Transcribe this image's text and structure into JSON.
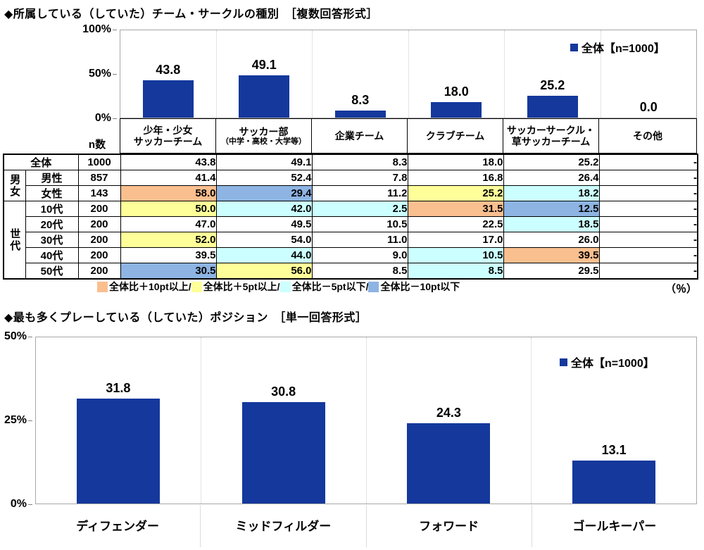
{
  "colors": {
    "bar": "#14389C",
    "plus10": "#FABF8F",
    "plus5": "#FFFF99",
    "minus5": "#CCFFFF",
    "minus10": "#8DB4E2"
  },
  "section1": {
    "title": "◆所属している（していた）チーム・サークルの種別　［複数回答形式］",
    "legend": "全体【n=1000】"
  },
  "section2": {
    "title": "◆最も多くプレーしている（していた）ポジション　［単一回答形式］",
    "legend": "全体【n=1000】"
  },
  "chart_data": [
    {
      "type": "bar",
      "title": "所属している（していた）チーム・サークルの種別",
      "categories": [
        "少年・少女サッカーチーム",
        "サッカー部（中学・高校・大学等）",
        "企業チーム",
        "クラブチーム",
        "サッカーサークル・草サッカーチーム",
        "その他"
      ],
      "values": [
        43.8,
        49.1,
        8.3,
        18.0,
        25.2,
        0.0
      ],
      "legend": "全体【n=1000】",
      "yticks": [
        "100%",
        "50%",
        "0%"
      ],
      "ylim": [
        0,
        100
      ],
      "grid": false,
      "legend_position": "top-right"
    },
    {
      "type": "bar",
      "title": "最も多くプレーしている（していた）ポジション",
      "categories": [
        "ディフェンダー",
        "ミッドフィルダー",
        "フォワード",
        "ゴールキーパー"
      ],
      "values": [
        31.8,
        30.8,
        24.3,
        13.1
      ],
      "legend": "全体【n=1000】",
      "yticks": [
        "50%",
        "25%",
        "0%"
      ],
      "ylim": [
        0,
        50
      ],
      "grid": false,
      "legend_position": "top-right"
    }
  ],
  "table": {
    "n_header": "n数",
    "col_headers": [
      [
        "少年・少女",
        "サッカーチーム"
      ],
      [
        "サッカー部",
        "（中学・高校・大学等）"
      ],
      [
        "企業チーム"
      ],
      [
        "クラブチーム"
      ],
      [
        "サッカーサークル・",
        "草サッカーチーム"
      ],
      [
        "その他"
      ]
    ],
    "row_groups": [
      {
        "label": "",
        "span": 1
      },
      {
        "label": "男女",
        "span": 2
      },
      {
        "label": "世代",
        "span": 5
      }
    ],
    "rows": [
      {
        "label": "全体",
        "n": "1000",
        "cells": [
          {
            "v": "43.8"
          },
          {
            "v": "49.1"
          },
          {
            "v": "8.3"
          },
          {
            "v": "18.0"
          },
          {
            "v": "25.2"
          },
          {
            "v": "-"
          }
        ]
      },
      {
        "label": "男性",
        "n": "857",
        "cells": [
          {
            "v": "41.4"
          },
          {
            "v": "52.4"
          },
          {
            "v": "7.8"
          },
          {
            "v": "16.8"
          },
          {
            "v": "26.4"
          },
          {
            "v": "-"
          }
        ]
      },
      {
        "label": "女性",
        "n": "143",
        "cells": [
          {
            "v": "58.0",
            "hl": "plus10"
          },
          {
            "v": "29.4",
            "hl": "minus10"
          },
          {
            "v": "11.2"
          },
          {
            "v": "25.2",
            "hl": "plus5"
          },
          {
            "v": "18.2",
            "hl": "minus5"
          },
          {
            "v": "-"
          }
        ]
      },
      {
        "label": "10代",
        "n": "200",
        "cells": [
          {
            "v": "50.0",
            "hl": "plus5"
          },
          {
            "v": "42.0",
            "hl": "minus5"
          },
          {
            "v": "2.5",
            "hl": "minus5"
          },
          {
            "v": "31.5",
            "hl": "plus10"
          },
          {
            "v": "12.5",
            "hl": "minus10"
          },
          {
            "v": "-"
          }
        ]
      },
      {
        "label": "20代",
        "n": "200",
        "cells": [
          {
            "v": "47.0"
          },
          {
            "v": "49.5"
          },
          {
            "v": "10.5"
          },
          {
            "v": "22.5"
          },
          {
            "v": "18.5",
            "hl": "minus5"
          },
          {
            "v": "-"
          }
        ]
      },
      {
        "label": "30代",
        "n": "200",
        "cells": [
          {
            "v": "52.0",
            "hl": "plus5"
          },
          {
            "v": "54.0"
          },
          {
            "v": "11.0"
          },
          {
            "v": "17.0"
          },
          {
            "v": "26.0"
          },
          {
            "v": "-"
          }
        ]
      },
      {
        "label": "40代",
        "n": "200",
        "cells": [
          {
            "v": "39.5"
          },
          {
            "v": "44.0",
            "hl": "minus5"
          },
          {
            "v": "9.0"
          },
          {
            "v": "10.5",
            "hl": "minus5"
          },
          {
            "v": "39.5",
            "hl": "plus10"
          },
          {
            "v": "-"
          }
        ]
      },
      {
        "label": "50代",
        "n": "200",
        "cells": [
          {
            "v": "30.5",
            "hl": "minus10"
          },
          {
            "v": "56.0",
            "hl": "plus5"
          },
          {
            "v": "8.5"
          },
          {
            "v": "8.5",
            "hl": "minus5"
          },
          {
            "v": "29.5"
          },
          {
            "v": "-"
          }
        ]
      }
    ],
    "legend": [
      {
        "hl": "plus10",
        "label": "全体比＋10pt以上/"
      },
      {
        "hl": "plus5",
        "label": "全体比＋5pt以上/"
      },
      {
        "hl": "minus5",
        "label": "全体比－5pt以下/"
      },
      {
        "hl": "minus10",
        "label": "全体比－10pt以下"
      }
    ],
    "unit": "（％）"
  }
}
